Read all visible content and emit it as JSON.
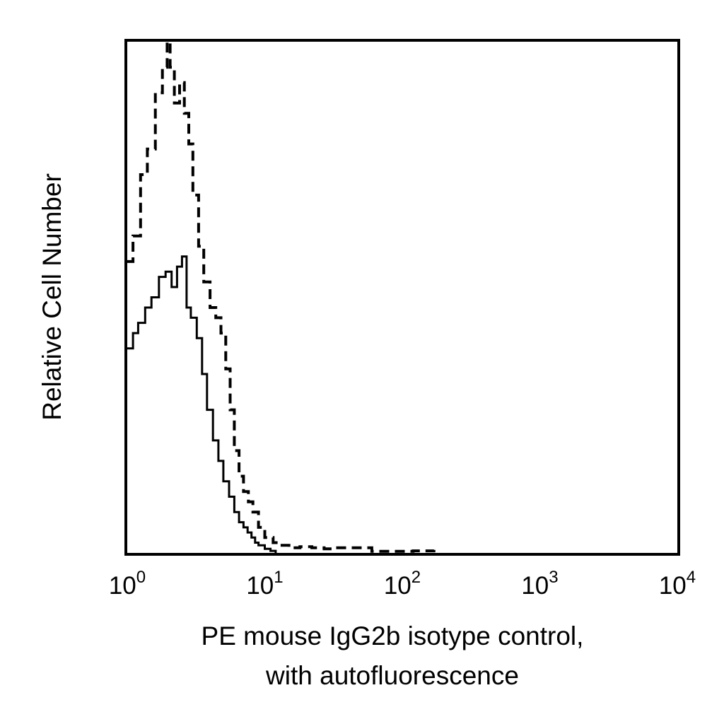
{
  "chart_data": {
    "type": "line",
    "x_scale": "log",
    "xlim": [
      1,
      10000
    ],
    "ylim": [
      0,
      1.0
    ],
    "grid": false,
    "xlabel_lines": [
      "PE mouse IgG2b isotype control,",
      "with autofluorescence"
    ],
    "ylabel": "Relative Cell Number",
    "x_ticks": [
      {
        "value": 1,
        "base": "10",
        "exp": "0"
      },
      {
        "value": 10,
        "base": "10",
        "exp": "1"
      },
      {
        "value": 100,
        "base": "10",
        "exp": "2"
      },
      {
        "value": 1000,
        "base": "10",
        "exp": "3"
      },
      {
        "value": 10000,
        "base": "10",
        "exp": "4"
      }
    ],
    "series": [
      {
        "style": "dashed",
        "color": "#000000",
        "x": [
          1.0,
          1.1,
          1.25,
          1.4,
          1.6,
          1.8,
          1.95,
          2.05,
          2.2,
          2.4,
          2.6,
          2.8,
          3.0,
          3.3,
          3.6,
          4.0,
          4.4,
          4.8,
          5.2,
          5.6,
          6.0,
          6.5,
          7.0,
          7.6,
          8.2,
          9.0,
          10.0,
          11.5,
          13.0,
          15.0,
          18.0,
          22.0,
          27.0,
          33.0,
          60.0,
          120.0,
          170.0
        ],
        "y": [
          0.57,
          0.62,
          0.74,
          0.79,
          0.9,
          0.95,
          1.0,
          0.95,
          0.88,
          0.92,
          0.86,
          0.8,
          0.7,
          0.6,
          0.53,
          0.48,
          0.46,
          0.43,
          0.36,
          0.28,
          0.2,
          0.15,
          0.12,
          0.1,
          0.08,
          0.05,
          0.03,
          0.02,
          0.015,
          0.01,
          0.012,
          0.01,
          0.008,
          0.01,
          0.003,
          0.004,
          0.006
        ]
      },
      {
        "style": "solid",
        "color": "#000000",
        "x": [
          1.0,
          1.1,
          1.2,
          1.35,
          1.5,
          1.7,
          1.9,
          2.1,
          2.3,
          2.5,
          2.7,
          2.9,
          3.2,
          3.5,
          3.8,
          4.2,
          4.6,
          5.0,
          5.5,
          6.0,
          6.5,
          7.0,
          7.5,
          8.0,
          8.5,
          9.0,
          10.0,
          11.0,
          12.0
        ],
        "y": [
          0.4,
          0.43,
          0.45,
          0.48,
          0.5,
          0.54,
          0.55,
          0.52,
          0.56,
          0.58,
          0.48,
          0.46,
          0.42,
          0.35,
          0.28,
          0.22,
          0.18,
          0.14,
          0.11,
          0.08,
          0.06,
          0.05,
          0.04,
          0.03,
          0.02,
          0.015,
          0.008,
          0.004,
          0.0
        ]
      }
    ]
  }
}
